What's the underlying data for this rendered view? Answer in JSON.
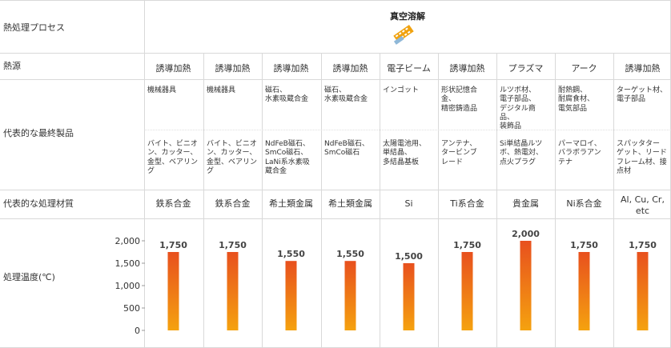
{
  "header": {
    "row_label": "熱処理プロセス",
    "title": "真空溶解",
    "icon": "film-strip-icon"
  },
  "heat_source": {
    "row_label": "熱源",
    "values": [
      "誘導加熱",
      "誘導加熱",
      "誘導加熱",
      "誘導加熱",
      "電子ビーム",
      "誘導加熱",
      "プラズマ",
      "アーク",
      "誘導加熱"
    ]
  },
  "products": {
    "row_label": "代表的な最終製品",
    "top": [
      "機械器具",
      "機械器具",
      "磁石、\n水素吸蔵合金",
      "磁石、\n水素吸蔵合金",
      "インゴット",
      "形状記憶合\n金、\n精密鋳造品",
      "ルツボ材、\n電子部品、\nデジタル商\n品、\n装飾品",
      "耐熱鋼、\n耐腐食材、\n電気部品",
      "ターゲット材、\n電子部品"
    ],
    "bottom": [
      "バイト、ビニオ\nン、カッター、\n金型、ベアリング",
      "バイト、ビニオ\nン、カッター、\n金型、ベアリング",
      "NdFeB磁石、\nSmCo磁石、\nLaNi系水素吸\n蔵合金",
      "NdFeB磁石、\nSmCo磁石",
      "太陽電池用、\n単結晶、\n多結晶基板",
      "アンテナ、\nタービンブ\nレード",
      "Si単結晶ルツ\nボ、熱電対、\n点火プラグ",
      "パーマロイ、\nバラボラアン\nテナ",
      "スパッタター\nゲット、リード\nフレーム材、接\n点材"
    ]
  },
  "materials": {
    "row_label": "代表的な処理材質",
    "values": [
      "鉄系合金",
      "鉄系合金",
      "希土類金属",
      "希土類金属",
      "Si",
      "Ti系合金",
      "貴金属",
      "Ni系合金",
      "Al, Cu, Cr,\netc"
    ]
  },
  "temperature": {
    "row_label": "処理温度(℃)"
  },
  "colors": {
    "bar_top": "#e8501e",
    "bar_bottom": "#f5a20f",
    "grid": "#d9d9d9"
  },
  "chart_data": {
    "type": "bar",
    "title": "",
    "ylabel": "処理温度(℃)",
    "xlabel": "",
    "categories": [
      "誘導加熱",
      "誘導加熱",
      "誘導加熱",
      "誘導加熱",
      "電子ビーム",
      "誘導加熱",
      "プラズマ",
      "アーク",
      "誘導加熱"
    ],
    "values": [
      1750,
      1750,
      1550,
      1550,
      1500,
      1750,
      2000,
      1750,
      1750
    ],
    "data_labels": [
      "1,750",
      "1,750",
      "1,550",
      "1,550",
      "1,500",
      "1,750",
      "2,000",
      "1,750",
      "1,750"
    ],
    "ylim": [
      0,
      2000
    ],
    "yticks": [
      0,
      500,
      1000,
      1500,
      2000
    ],
    "ytick_labels": [
      "0",
      "500",
      "1,000",
      "1,500",
      "2,000"
    ],
    "grid": false
  }
}
